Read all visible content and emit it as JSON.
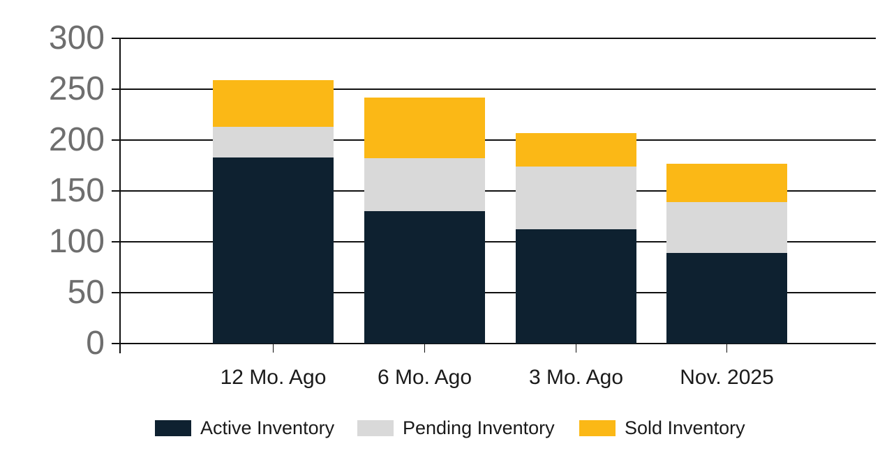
{
  "chart_data": {
    "type": "bar",
    "stacked": true,
    "title": "",
    "xlabel": "",
    "ylabel": "",
    "categories": [
      "12 Mo. Ago",
      "6 Mo. Ago",
      "3 Mo. Ago",
      "Nov. 2025"
    ],
    "series": [
      {
        "name": "Active Inventory",
        "color": "#0E2130",
        "values": [
          183,
          130,
          112,
          89
        ]
      },
      {
        "name": "Pending Inventory",
        "color": "#D9D9D9",
        "values": [
          30,
          52,
          62,
          50
        ]
      },
      {
        "name": "Sold Inventory",
        "color": "#FBB816",
        "values": [
          46,
          60,
          33,
          38
        ]
      }
    ],
    "ylim": [
      0,
      300
    ],
    "ytick_step": 50,
    "ytick_labels": [
      "0",
      "50",
      "100",
      "150",
      "200",
      "250",
      "300"
    ],
    "grid": true,
    "legend_position": "bottom"
  },
  "colors": {
    "background": "#FFFFFF",
    "grid_line": "#101010",
    "axis_line": "#101010",
    "y_tick_label": "#6E6E6E",
    "x_tick_label": "#1A1A1A",
    "legend_text": "#1A1A1A"
  }
}
